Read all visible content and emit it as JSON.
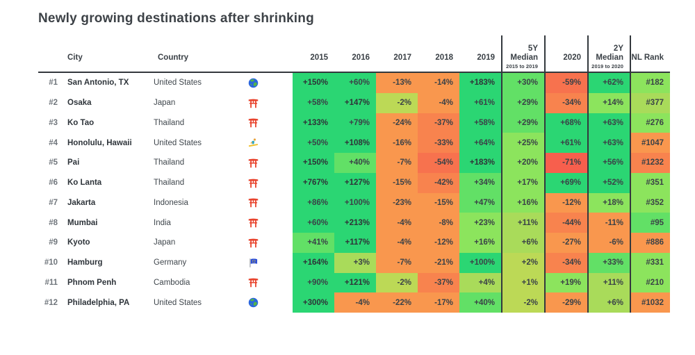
{
  "title": "Newly growing destinations after shrinking",
  "palette": {
    "green_strong": "#2bd673",
    "green_mid": "#62e066",
    "green_light": "#8ce45d",
    "yellow_green": "#a9db5a",
    "yellow": "#bcd956",
    "orange": "#f9974e",
    "orange_deep": "#f8834e",
    "orange_red": "#f7724e",
    "red": "#f75f4d",
    "divider": "#33383d"
  },
  "header": {
    "city": "City",
    "country": "Country",
    "y2015": "2015",
    "y2016": "2016",
    "y2017": "2017",
    "y2018": "2018",
    "y2019": "2019",
    "median5_top": "5Y",
    "median5_bottom": "Median",
    "median5_sub": "2015 to 2019",
    "y2020": "2020",
    "median2_top": "2Y",
    "median2_bottom": "Median",
    "median2_sub": "2019 to 2020",
    "nl_rank": "NL Rank"
  },
  "chart_data": {
    "type": "heatmap",
    "title": "Newly growing destinations after shrinking",
    "value_columns": [
      "2015",
      "2016",
      "2017",
      "2018",
      "2019",
      "5Y Median 2015 to 2019",
      "2020",
      "2Y Median 2019 to 2020"
    ],
    "rows": [
      {
        "rank": "#1",
        "city": "San Antonio, TX",
        "country": "United States",
        "icon": "globe-icon",
        "values": [
          "+150%",
          "+60%",
          "-13%",
          "-14%",
          "+183%",
          "+30%",
          "-59%",
          "+62%"
        ],
        "nl_rank": "#182"
      },
      {
        "rank": "#2",
        "city": "Osaka",
        "country": "Japan",
        "icon": "torii-icon",
        "values": [
          "+58%",
          "+147%",
          "-2%",
          "-4%",
          "+61%",
          "+29%",
          "-34%",
          "+14%"
        ],
        "nl_rank": "#377"
      },
      {
        "rank": "#3",
        "city": "Ko Tao",
        "country": "Thailand",
        "icon": "torii-icon",
        "values": [
          "+133%",
          "+79%",
          "-24%",
          "-37%",
          "+58%",
          "+29%",
          "+68%",
          "+63%"
        ],
        "nl_rank": "#276"
      },
      {
        "rank": "#4",
        "city": "Honolulu, Hawaii",
        "country": "United States",
        "icon": "surfer-icon",
        "values": [
          "+50%",
          "+108%",
          "-16%",
          "-33%",
          "+64%",
          "+25%",
          "+61%",
          "+63%"
        ],
        "nl_rank": "#1047"
      },
      {
        "rank": "#5",
        "city": "Pai",
        "country": "Thailand",
        "icon": "torii-icon",
        "values": [
          "+150%",
          "+40%",
          "-7%",
          "-54%",
          "+183%",
          "+20%",
          "-71%",
          "+56%"
        ],
        "nl_rank": "#1232"
      },
      {
        "rank": "#6",
        "city": "Ko Lanta",
        "country": "Thailand",
        "icon": "torii-icon",
        "values": [
          "+767%",
          "+127%",
          "-15%",
          "-42%",
          "+34%",
          "+17%",
          "+69%",
          "+52%"
        ],
        "nl_rank": "#351"
      },
      {
        "rank": "#7",
        "city": "Jakarta",
        "country": "Indonesia",
        "icon": "torii-icon",
        "values": [
          "+86%",
          "+100%",
          "-23%",
          "-15%",
          "+47%",
          "+16%",
          "-12%",
          "+18%"
        ],
        "nl_rank": "#352"
      },
      {
        "rank": "#8",
        "city": "Mumbai",
        "country": "India",
        "icon": "torii-icon",
        "values": [
          "+60%",
          "+213%",
          "-4%",
          "-8%",
          "+23%",
          "+11%",
          "-44%",
          "-11%"
        ],
        "nl_rank": "#95"
      },
      {
        "rank": "#9",
        "city": "Kyoto",
        "country": "Japan",
        "icon": "torii-icon",
        "values": [
          "+41%",
          "+117%",
          "-4%",
          "-12%",
          "+16%",
          "+6%",
          "-27%",
          "-6%"
        ],
        "nl_rank": "#886"
      },
      {
        "rank": "#10",
        "city": "Hamburg",
        "country": "Germany",
        "icon": "eu-flag-icon",
        "values": [
          "+164%",
          "+3%",
          "-7%",
          "-21%",
          "+100%",
          "+2%",
          "-34%",
          "+33%"
        ],
        "nl_rank": "#331"
      },
      {
        "rank": "#11",
        "city": "Phnom Penh",
        "country": "Cambodia",
        "icon": "torii-icon",
        "values": [
          "+90%",
          "+121%",
          "-2%",
          "-37%",
          "+4%",
          "+1%",
          "+19%",
          "+11%"
        ],
        "nl_rank": "#210"
      },
      {
        "rank": "#12",
        "city": "Philadelphia, PA",
        "country": "United States",
        "icon": "globe-icon",
        "values": [
          "+300%",
          "-4%",
          "-22%",
          "-17%",
          "+40%",
          "-2%",
          "-29%",
          "+6%"
        ],
        "nl_rank": "#1032"
      }
    ]
  }
}
